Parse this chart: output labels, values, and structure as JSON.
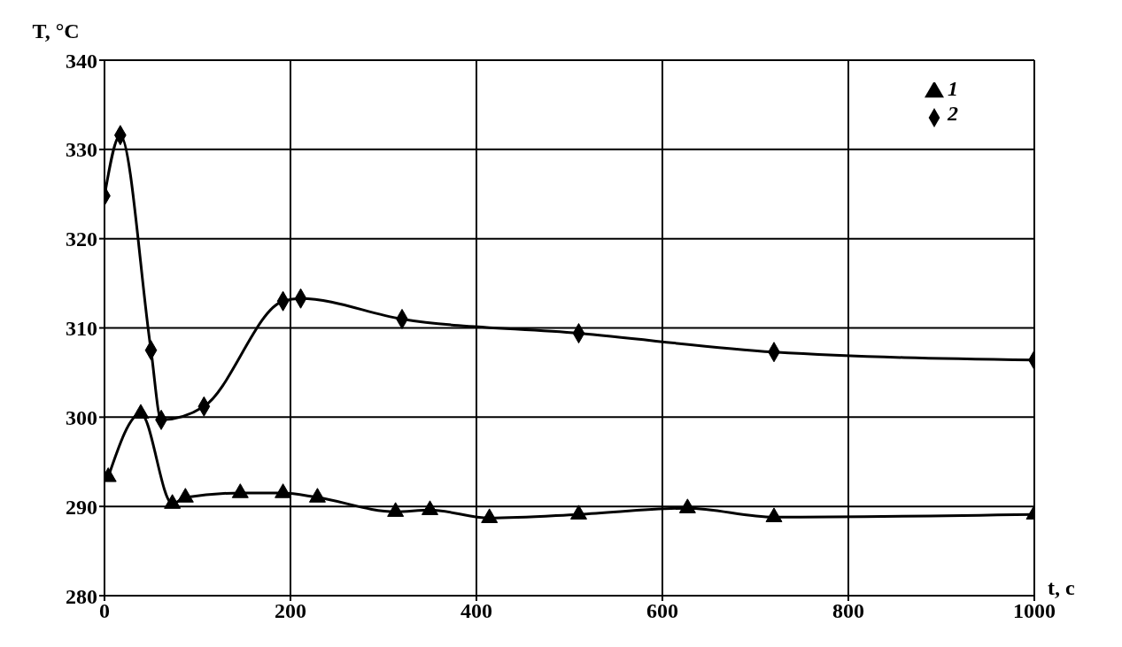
{
  "chart_data": {
    "type": "line",
    "xlabel": "t, c",
    "ylabel": "T, °C",
    "xlim": [
      0,
      1000
    ],
    "xticks": [
      0,
      200,
      400,
      600,
      800,
      1000
    ],
    "ylim": [
      280,
      340
    ],
    "yticks": [
      280,
      290,
      300,
      310,
      320,
      330,
      340
    ],
    "grid": true,
    "legend": "top right",
    "line_style": "solid",
    "series": [
      {
        "name": "1",
        "color": "#000000",
        "marker": "triangle",
        "x": [
          4,
          39,
          73,
          87,
          146,
          192,
          229,
          313,
          350,
          414,
          510,
          627,
          720,
          1000
        ],
        "values": [
          293.3,
          300.4,
          290.3,
          291,
          291.5,
          291.5,
          291,
          289.4,
          289.6,
          288.7,
          289.1,
          289.8,
          288.8,
          289.1
        ]
      },
      {
        "name": "2",
        "color": "#000000",
        "marker": "diamond",
        "x": [
          0,
          17,
          50,
          61,
          107,
          192,
          211,
          320,
          510,
          720,
          1000
        ],
        "values": [
          324.8,
          331.6,
          307.5,
          299.7,
          301.2,
          313,
          313.3,
          311,
          309.4,
          307.3,
          306.4
        ]
      }
    ]
  }
}
